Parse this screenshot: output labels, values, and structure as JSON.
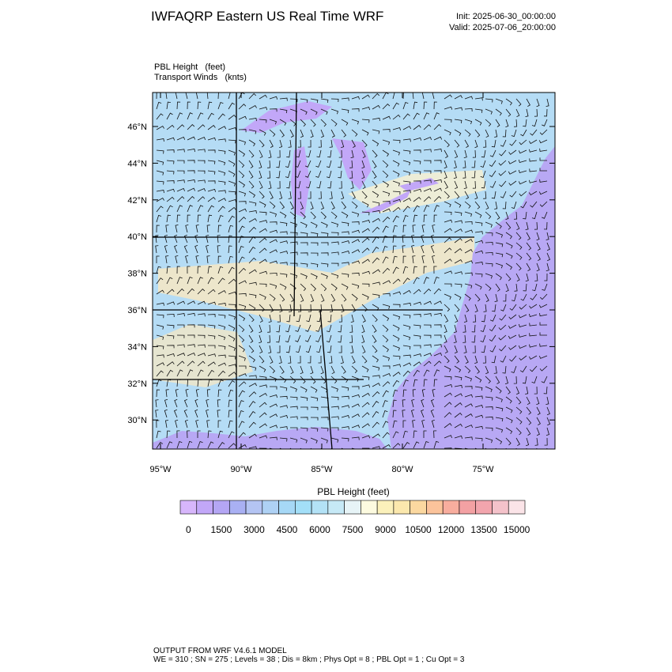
{
  "header": {
    "title": "IWFAQRP Eastern US Real Time WRF",
    "init": "Init: 2025-06-30_00:00:00",
    "valid": "Valid: 2025-07-06_20:00:00"
  },
  "field_labels": [
    "PBL Height   (feet)",
    "Transport Winds   (knts)"
  ],
  "map": {
    "lat_labels": [
      "46°N",
      "44°N",
      "42°N",
      "40°N",
      "38°N",
      "36°N",
      "34°N",
      "32°N",
      "30°N"
    ],
    "lon_labels": [
      "95°W",
      "90°W",
      "85°W",
      "80°W",
      "75°W"
    ]
  },
  "colorbar": {
    "title": "PBL Height  (feet)",
    "colors": [
      "#d7b6fb",
      "#c2a7f8",
      "#b4a6f4",
      "#a9b0f3",
      "#b4c4f3",
      "#aed1f4",
      "#a6d8f6",
      "#a3dff8",
      "#b3e2f6",
      "#c6e9f6",
      "#e7f4f7",
      "#fdfbe0",
      "#fbf1bb",
      "#fbe8ad",
      "#fbd8a0",
      "#fbc39b",
      "#f8ad9e",
      "#f3a1a3",
      "#f2a5ad",
      "#f4c2ca",
      "#fbe4e8"
    ],
    "ticks": [
      0,
      1500,
      3000,
      4500,
      6000,
      7500,
      9000,
      10500,
      12000,
      13500,
      15000
    ]
  },
  "footer": [
    "OUTPUT FROM WRF V4.6.1 MODEL",
    "WE = 310 ; SN = 275 ; Levels = 38 ; Dis = 8km ; Phys Opt = 8 ; PBL Opt = 1 ; Cu Opt = 3"
  ]
}
